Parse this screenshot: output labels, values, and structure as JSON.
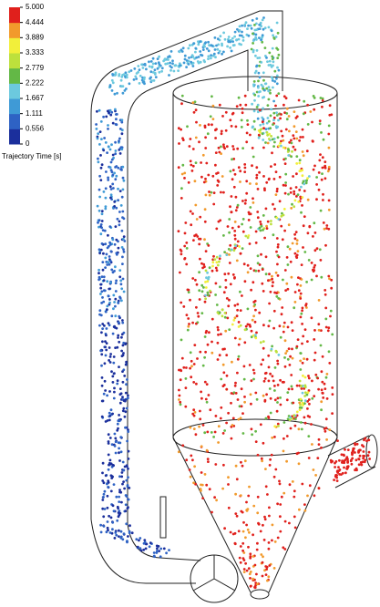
{
  "legend": {
    "title": "Trajectory Time [s]",
    "ticks": [
      "0",
      "0.556",
      "1.111",
      "1.667",
      "2.222",
      "2.779",
      "3.333",
      "3.889",
      "4.444",
      "5.000"
    ],
    "colors": [
      "#1b2f9c",
      "#2e62c4",
      "#3f9ad6",
      "#6cc9de",
      "#63b846",
      "#bde03c",
      "#f2ef3a",
      "#f29a2c",
      "#e0201c"
    ]
  }
}
